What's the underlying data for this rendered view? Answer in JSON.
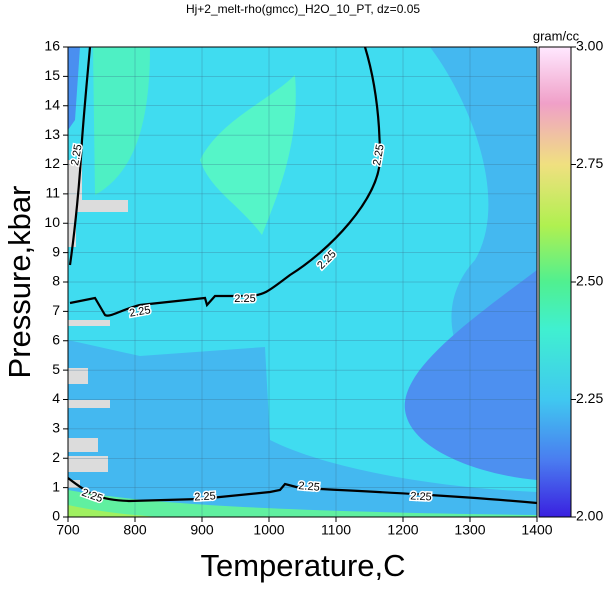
{
  "chart_data": {
    "type": "contour",
    "title": "Hj+2_melt-rho(gmcc)_H2O_10_PT, dz=0.05",
    "x_label": "Temperature,C",
    "y_label": "Pressure,kbar",
    "xlim": [
      700,
      1400
    ],
    "xticks": [
      700,
      800,
      900,
      1000,
      1100,
      1200,
      1300,
      1400
    ],
    "ylim": [
      0,
      16
    ],
    "yticks": [
      0,
      1,
      2,
      3,
      4,
      5,
      6,
      7,
      8,
      9,
      10,
      11,
      12,
      13,
      14,
      15,
      16
    ],
    "grid": true,
    "colorbar_label": "gram/cc",
    "colorbar_lim": [
      2,
      3
    ],
    "colorbar_ticks": [
      {
        "value": 2,
        "label": "2.00"
      },
      {
        "value": 2.25,
        "label": "2.25"
      },
      {
        "value": 2.5,
        "label": "2.50"
      },
      {
        "value": 2.75,
        "label": "2.75"
      },
      {
        "value": 3,
        "label": "3.00"
      }
    ],
    "contour_levels": [
      {
        "value": 2.25,
        "label": "2.25"
      }
    ]
  }
}
